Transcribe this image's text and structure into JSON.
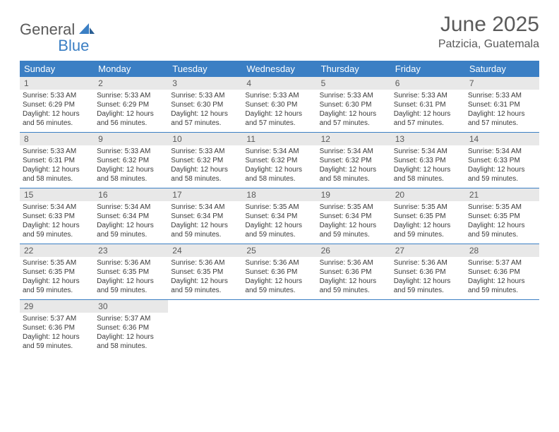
{
  "brand": {
    "part1": "General",
    "part2": "Blue"
  },
  "title": "June 2025",
  "location": "Patzicia, Guatemala",
  "colors": {
    "header_bg": "#3b7fc4",
    "header_text": "#ffffff",
    "daynum_bg": "#e8e8e8",
    "text": "#5a5a5a",
    "body_text": "#3a3a3a",
    "rule": "#3b7fc4"
  },
  "dayNames": [
    "Sunday",
    "Monday",
    "Tuesday",
    "Wednesday",
    "Thursday",
    "Friday",
    "Saturday"
  ],
  "layout": {
    "cols": 7,
    "cell_fontsize": 10,
    "header_fontsize": 13
  },
  "days": [
    {
      "n": 1,
      "sunrise": "5:33 AM",
      "sunset": "6:29 PM",
      "daylight": "12 hours and 56 minutes."
    },
    {
      "n": 2,
      "sunrise": "5:33 AM",
      "sunset": "6:29 PM",
      "daylight": "12 hours and 56 minutes."
    },
    {
      "n": 3,
      "sunrise": "5:33 AM",
      "sunset": "6:30 PM",
      "daylight": "12 hours and 57 minutes."
    },
    {
      "n": 4,
      "sunrise": "5:33 AM",
      "sunset": "6:30 PM",
      "daylight": "12 hours and 57 minutes."
    },
    {
      "n": 5,
      "sunrise": "5:33 AM",
      "sunset": "6:30 PM",
      "daylight": "12 hours and 57 minutes."
    },
    {
      "n": 6,
      "sunrise": "5:33 AM",
      "sunset": "6:31 PM",
      "daylight": "12 hours and 57 minutes."
    },
    {
      "n": 7,
      "sunrise": "5:33 AM",
      "sunset": "6:31 PM",
      "daylight": "12 hours and 57 minutes."
    },
    {
      "n": 8,
      "sunrise": "5:33 AM",
      "sunset": "6:31 PM",
      "daylight": "12 hours and 58 minutes."
    },
    {
      "n": 9,
      "sunrise": "5:33 AM",
      "sunset": "6:32 PM",
      "daylight": "12 hours and 58 minutes."
    },
    {
      "n": 10,
      "sunrise": "5:33 AM",
      "sunset": "6:32 PM",
      "daylight": "12 hours and 58 minutes."
    },
    {
      "n": 11,
      "sunrise": "5:34 AM",
      "sunset": "6:32 PM",
      "daylight": "12 hours and 58 minutes."
    },
    {
      "n": 12,
      "sunrise": "5:34 AM",
      "sunset": "6:32 PM",
      "daylight": "12 hours and 58 minutes."
    },
    {
      "n": 13,
      "sunrise": "5:34 AM",
      "sunset": "6:33 PM",
      "daylight": "12 hours and 58 minutes."
    },
    {
      "n": 14,
      "sunrise": "5:34 AM",
      "sunset": "6:33 PM",
      "daylight": "12 hours and 59 minutes."
    },
    {
      "n": 15,
      "sunrise": "5:34 AM",
      "sunset": "6:33 PM",
      "daylight": "12 hours and 59 minutes."
    },
    {
      "n": 16,
      "sunrise": "5:34 AM",
      "sunset": "6:34 PM",
      "daylight": "12 hours and 59 minutes."
    },
    {
      "n": 17,
      "sunrise": "5:34 AM",
      "sunset": "6:34 PM",
      "daylight": "12 hours and 59 minutes."
    },
    {
      "n": 18,
      "sunrise": "5:35 AM",
      "sunset": "6:34 PM",
      "daylight": "12 hours and 59 minutes."
    },
    {
      "n": 19,
      "sunrise": "5:35 AM",
      "sunset": "6:34 PM",
      "daylight": "12 hours and 59 minutes."
    },
    {
      "n": 20,
      "sunrise": "5:35 AM",
      "sunset": "6:35 PM",
      "daylight": "12 hours and 59 minutes."
    },
    {
      "n": 21,
      "sunrise": "5:35 AM",
      "sunset": "6:35 PM",
      "daylight": "12 hours and 59 minutes."
    },
    {
      "n": 22,
      "sunrise": "5:35 AM",
      "sunset": "6:35 PM",
      "daylight": "12 hours and 59 minutes."
    },
    {
      "n": 23,
      "sunrise": "5:36 AM",
      "sunset": "6:35 PM",
      "daylight": "12 hours and 59 minutes."
    },
    {
      "n": 24,
      "sunrise": "5:36 AM",
      "sunset": "6:35 PM",
      "daylight": "12 hours and 59 minutes."
    },
    {
      "n": 25,
      "sunrise": "5:36 AM",
      "sunset": "6:36 PM",
      "daylight": "12 hours and 59 minutes."
    },
    {
      "n": 26,
      "sunrise": "5:36 AM",
      "sunset": "6:36 PM",
      "daylight": "12 hours and 59 minutes."
    },
    {
      "n": 27,
      "sunrise": "5:36 AM",
      "sunset": "6:36 PM",
      "daylight": "12 hours and 59 minutes."
    },
    {
      "n": 28,
      "sunrise": "5:37 AM",
      "sunset": "6:36 PM",
      "daylight": "12 hours and 59 minutes."
    },
    {
      "n": 29,
      "sunrise": "5:37 AM",
      "sunset": "6:36 PM",
      "daylight": "12 hours and 59 minutes."
    },
    {
      "n": 30,
      "sunrise": "5:37 AM",
      "sunset": "6:36 PM",
      "daylight": "12 hours and 58 minutes."
    }
  ],
  "labels": {
    "sunrise": "Sunrise:",
    "sunset": "Sunset:",
    "daylight": "Daylight:"
  }
}
